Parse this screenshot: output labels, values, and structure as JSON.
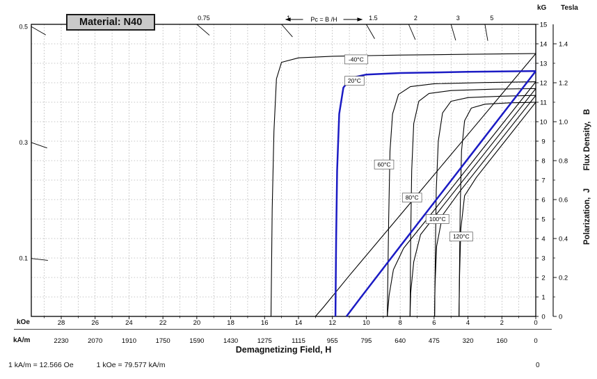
{
  "header": {
    "material_label": "Material: N40"
  },
  "axes": {
    "x": {
      "title": "Demagnetizing Field, H",
      "unit_primary": "kOe",
      "unit_secondary": "kA/m",
      "koe_ticks": [
        28,
        26,
        24,
        22,
        20,
        18,
        16,
        14,
        12,
        10,
        8,
        6,
        4,
        2,
        0
      ],
      "kam_ticks": [
        "2230",
        "2070",
        "1910",
        "1750",
        "1590",
        "1430",
        "1275",
        "1115",
        "955",
        "795",
        "640",
        "475",
        "320",
        "160",
        "0"
      ]
    },
    "y": {
      "unit_kg": "kG",
      "unit_tesla": "Tesla",
      "right_title": "Polarization,  J        Flux Density,   B",
      "kg_ticks": [
        0,
        1,
        2,
        3,
        4,
        5,
        6,
        7,
        8,
        9,
        10,
        11,
        12,
        13,
        14,
        15
      ],
      "tesla_ticks": [
        {
          "kg": 14,
          "label": "1.4"
        },
        {
          "kg": 12,
          "label": "1.2"
        },
        {
          "kg": 10,
          "label": "1.0"
        },
        {
          "kg": 8,
          "label": "0.8"
        },
        {
          "kg": 6,
          "label": "0.6"
        },
        {
          "kg": 4,
          "label": "0.4"
        },
        {
          "kg": 2,
          "label": "0.2"
        },
        {
          "kg": 0,
          "label": "0"
        }
      ]
    }
  },
  "pc": {
    "annotation": "Pc = B /H",
    "marks": [
      {
        "v": 0.1,
        "label": "0.1"
      },
      {
        "v": 0.3,
        "label": "0.3"
      },
      {
        "v": 0.5,
        "label": "0.5"
      },
      {
        "v": 0.75,
        "label": "0.75"
      },
      {
        "v": 1,
        "label": "1"
      },
      {
        "v": 1.5,
        "label": "1.5"
      },
      {
        "v": 2,
        "label": "2"
      },
      {
        "v": 3,
        "label": "3"
      },
      {
        "v": 5,
        "label": "5"
      }
    ]
  },
  "footnote": {
    "left": "1 kA/m = 12.566 Oe",
    "right": "1 kOe = 79.577 kA/m",
    "corner_zero": "0"
  },
  "colors": {
    "highlight": "#1b1bc4",
    "curve": "#000000",
    "grid": "#8a8a8a"
  },
  "chart_data": {
    "type": "line",
    "title": "Material: N40",
    "xlabel": "Demagnetizing Field, H (kOe / kA/m), 0 at right increasing leftward",
    "ylabel": "Polarization J / Flux Density B (kG / Tesla)",
    "x_range_koe": [
      0,
      29.8
    ],
    "y_range_kg": [
      0,
      15
    ],
    "grid": true,
    "load_lines_pc": [
      0.1,
      0.3,
      0.5,
      0.75,
      1,
      1.5,
      2,
      3,
      5
    ],
    "series": [
      {
        "name": "-40°C",
        "color": "#000000",
        "width": 1.1,
        "highlight": false,
        "label_at": {
          "H": 10.6,
          "B": 13.2
        },
        "intrinsic_JH": [
          [
            0,
            13.5
          ],
          [
            4,
            13.46
          ],
          [
            8,
            13.42
          ],
          [
            12,
            13.36
          ],
          [
            14,
            13.28
          ],
          [
            15.0,
            13.05
          ],
          [
            15.3,
            12.2
          ],
          [
            15.45,
            9.5
          ],
          [
            15.55,
            5.5
          ],
          [
            15.62,
            0
          ]
        ],
        "normal_BH": [
          [
            0,
            13.5
          ],
          [
            4,
            9.35
          ],
          [
            8,
            5.2
          ],
          [
            11,
            2.1
          ],
          [
            12.5,
            0.5
          ],
          [
            13.0,
            0
          ]
        ]
      },
      {
        "name": "20°C",
        "color": "#1b1bc4",
        "width": 2.5,
        "highlight": true,
        "label_at": {
          "H": 10.7,
          "B": 12.1
        },
        "intrinsic_JH": [
          [
            0,
            12.6
          ],
          [
            4,
            12.56
          ],
          [
            8,
            12.5
          ],
          [
            10,
            12.42
          ],
          [
            10.9,
            12.25
          ],
          [
            11.35,
            11.75
          ],
          [
            11.6,
            10.4
          ],
          [
            11.72,
            7.5
          ],
          [
            11.78,
            4
          ],
          [
            11.82,
            0
          ]
        ],
        "normal_BH": [
          [
            0,
            12.6
          ],
          [
            4,
            8.1
          ],
          [
            8,
            3.6
          ],
          [
            10.3,
            1.0
          ],
          [
            11.17,
            0
          ]
        ]
      },
      {
        "name": "60°C",
        "color": "#000000",
        "width": 1.1,
        "highlight": false,
        "label_at": {
          "H": 8.95,
          "B": 7.8
        },
        "intrinsic_JH": [
          [
            0,
            12.05
          ],
          [
            3,
            12.01
          ],
          [
            6,
            11.95
          ],
          [
            7.4,
            11.8
          ],
          [
            8.1,
            11.4
          ],
          [
            8.45,
            10.4
          ],
          [
            8.6,
            8.5
          ],
          [
            8.68,
            5
          ],
          [
            8.73,
            2
          ],
          [
            8.76,
            0
          ]
        ],
        "normal_BH": [
          [
            0,
            12.05
          ],
          [
            3,
            8.75
          ],
          [
            6,
            5.45
          ],
          [
            7.8,
            3.5
          ],
          [
            8.4,
            2.4
          ],
          [
            8.65,
            1.1
          ],
          [
            8.76,
            0
          ]
        ]
      },
      {
        "name": "80°C",
        "color": "#000000",
        "width": 1.1,
        "highlight": false,
        "label_at": {
          "H": 7.3,
          "B": 6.1
        },
        "intrinsic_JH": [
          [
            0,
            11.7
          ],
          [
            2.5,
            11.67
          ],
          [
            5,
            11.6
          ],
          [
            6.3,
            11.45
          ],
          [
            6.9,
            11.05
          ],
          [
            7.2,
            9.9
          ],
          [
            7.32,
            7.5
          ],
          [
            7.38,
            4
          ],
          [
            7.42,
            0
          ]
        ],
        "normal_BH": [
          [
            0,
            11.7
          ],
          [
            3,
            8.4
          ],
          [
            5.5,
            5.65
          ],
          [
            6.8,
            4.2
          ],
          [
            7.2,
            2.8
          ],
          [
            7.38,
            1.2
          ],
          [
            7.42,
            0
          ]
        ]
      },
      {
        "name": "100°C",
        "color": "#000000",
        "width": 1.1,
        "highlight": false,
        "label_at": {
          "H": 5.8,
          "B": 5.0
        },
        "intrinsic_JH": [
          [
            0,
            11.35
          ],
          [
            2,
            11.31
          ],
          [
            4,
            11.24
          ],
          [
            5,
            11.05
          ],
          [
            5.5,
            10.45
          ],
          [
            5.75,
            9.0
          ],
          [
            5.87,
            6.5
          ],
          [
            5.93,
            3
          ],
          [
            5.97,
            0
          ]
        ],
        "normal_BH": [
          [
            0,
            11.35
          ],
          [
            2.5,
            8.6
          ],
          [
            4.5,
            6.4
          ],
          [
            5.5,
            5.2
          ],
          [
            5.85,
            3.6
          ],
          [
            5.95,
            1.5
          ],
          [
            5.97,
            0
          ]
        ]
      },
      {
        "name": "120°C",
        "color": "#000000",
        "width": 1.1,
        "highlight": false,
        "label_at": {
          "H": 4.4,
          "B": 4.1
        },
        "intrinsic_JH": [
          [
            0,
            11.0
          ],
          [
            1.5,
            10.97
          ],
          [
            3,
            10.9
          ],
          [
            3.8,
            10.7
          ],
          [
            4.2,
            10.05
          ],
          [
            4.38,
            8.5
          ],
          [
            4.46,
            5.5
          ],
          [
            4.5,
            2.5
          ],
          [
            4.53,
            0
          ]
        ],
        "normal_BH": [
          [
            0,
            11.0
          ],
          [
            2,
            8.8
          ],
          [
            3.5,
            7.15
          ],
          [
            4.2,
            6.2
          ],
          [
            4.42,
            4.5
          ],
          [
            4.5,
            2.0
          ],
          [
            4.53,
            0
          ]
        ]
      }
    ]
  }
}
